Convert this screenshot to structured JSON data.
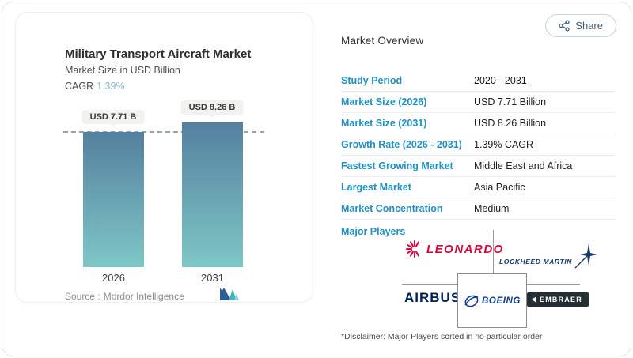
{
  "share": {
    "label": "Share"
  },
  "chart_card": {
    "title": "Military Transport Aircraft Market",
    "subtitle": "Market Size in USD Billion",
    "cagr_label": "CAGR",
    "cagr_value": "1.39%",
    "source_label": "Source :",
    "source_value": "Mordor Intelligence"
  },
  "chart_data": {
    "type": "bar",
    "title": "Military Transport Aircraft Market",
    "subtitle": "Market Size in USD Billion",
    "unit": "USD Billion",
    "categories": [
      "2026",
      "2031"
    ],
    "values": [
      7.71,
      8.26
    ],
    "value_labels": [
      "USD 7.71 B",
      "USD 8.26 B"
    ],
    "cagr": "1.39%",
    "reference_line": {
      "y": 7.71,
      "style": "dashed"
    },
    "bar_gradient": [
      "#54809f",
      "#7fc7c6"
    ],
    "grid": false,
    "legend": false
  },
  "overview": {
    "heading": "Market Overview",
    "rows": [
      {
        "label": "Study Period",
        "value": "2020 - 2031"
      },
      {
        "label": "Market Size (2026)",
        "value": "USD 7.71 Billion"
      },
      {
        "label": "Market Size (2031)",
        "value": "USD 8.26 Billion"
      },
      {
        "label": "Growth Rate (2026 - 2031)",
        "value": "1.39% CAGR"
      },
      {
        "label": "Fastest Growing Market",
        "value": "Middle East and Africa"
      },
      {
        "label": "Largest Market",
        "value": "Asia Pacific"
      },
      {
        "label": "Market Concentration",
        "value": "Medium"
      }
    ]
  },
  "major_players": {
    "label": "Major Players",
    "players": [
      {
        "name": "Leonardo",
        "text": "LEONARDO"
      },
      {
        "name": "Lockheed Martin",
        "text": "LOCKHEED MARTIN"
      },
      {
        "name": "Airbus",
        "text": "AIRBUS"
      },
      {
        "name": "Boeing",
        "text": "BOEING"
      },
      {
        "name": "Embraer",
        "text": "EMBRAER"
      }
    ],
    "disclaimer": "*Disclaimer: Major Players sorted in no particular order"
  },
  "colors": {
    "accent_blue": "#2191c4",
    "cagr_teal": "#8db8cd",
    "bar_gradient_top": "#54809f",
    "bar_gradient_bottom": "#7fc7c6",
    "dashed_line": "#97a6ae",
    "leonardo_red": "#d6083b",
    "lockheed_navy": "#1a3a6b",
    "airbus_navy": "#00205b",
    "boeing_blue": "#0d3a93",
    "embraer_dark": "#232e35",
    "share_text": "#3e5d7a"
  }
}
